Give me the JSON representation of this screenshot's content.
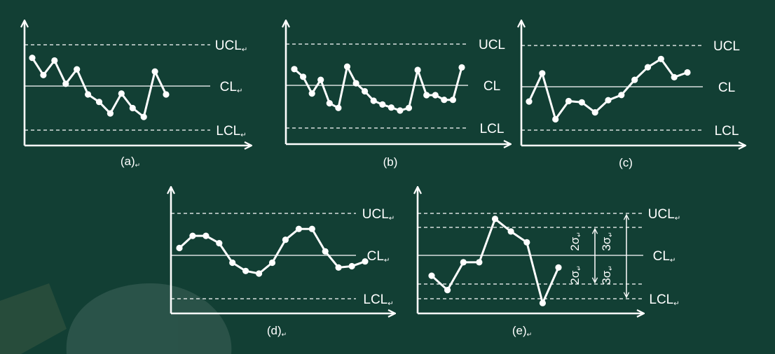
{
  "colors": {
    "background": "#123f34",
    "ink": "#ffffff"
  },
  "return_mark": "↵",
  "charts": [
    {
      "id": "a",
      "caption": "(a)",
      "caption_mark": true,
      "lines": [
        {
          "label": "UCL",
          "mark": true
        },
        {
          "label": "CL",
          "mark": true
        },
        {
          "label": "LCL",
          "mark": true
        }
      ],
      "points": [
        0.64,
        0.25,
        0.58,
        0.05,
        0.38,
        -0.19,
        -0.36,
        -0.62,
        -0.17,
        -0.5,
        -0.7,
        0.33,
        -0.19
      ]
    },
    {
      "id": "b",
      "caption": "(b)",
      "caption_mark": false,
      "lines": [
        {
          "label": "UCL",
          "mark": false
        },
        {
          "label": "CL",
          "mark": false
        },
        {
          "label": "LCL",
          "mark": false
        }
      ],
      "points": [
        0.38,
        0.2,
        -0.19,
        0.13,
        -0.42,
        -0.53,
        0.44,
        0.05,
        -0.14,
        -0.36,
        -0.45,
        -0.52,
        -0.59,
        -0.53,
        0.36,
        -0.23,
        -0.23,
        -0.34,
        -0.34,
        0.42
      ]
    },
    {
      "id": "c",
      "caption": "(c)",
      "caption_mark": false,
      "lines": [
        {
          "label": "UCL",
          "mark": false
        },
        {
          "label": "CL",
          "mark": false
        },
        {
          "label": "LCL",
          "mark": false
        }
      ],
      "points": [
        -0.34,
        0.31,
        -0.75,
        -0.33,
        -0.36,
        -0.59,
        -0.31,
        -0.19,
        0.16,
        0.45,
        0.64,
        0.22,
        0.33
      ]
    },
    {
      "id": "d",
      "caption": "(d)",
      "caption_mark": true,
      "lines": [
        {
          "label": "UCL",
          "mark": true
        },
        {
          "label": "CL",
          "mark": true
        },
        {
          "label": "LCL",
          "mark": true
        }
      ],
      "points": [
        0.17,
        0.45,
        0.45,
        0.28,
        -0.17,
        -0.36,
        -0.42,
        -0.17,
        0.36,
        0.61,
        0.61,
        0.09,
        -0.28,
        -0.25,
        -0.14
      ]
    },
    {
      "id": "e",
      "caption": "(e)",
      "caption_mark": true,
      "lines": [
        {
          "label": "UCL",
          "mark": true
        },
        {
          "label": "CL",
          "mark": true
        },
        {
          "label": "LCL",
          "mark": true
        }
      ],
      "points": [
        -0.47,
        -0.8,
        -0.16,
        -0.16,
        0.84,
        0.55,
        0.3,
        -1.1,
        -0.28
      ],
      "sigma_marks": {
        "two_sigma": "2σ",
        "three_sigma": "3σ",
        "mark": true
      }
    }
  ]
}
